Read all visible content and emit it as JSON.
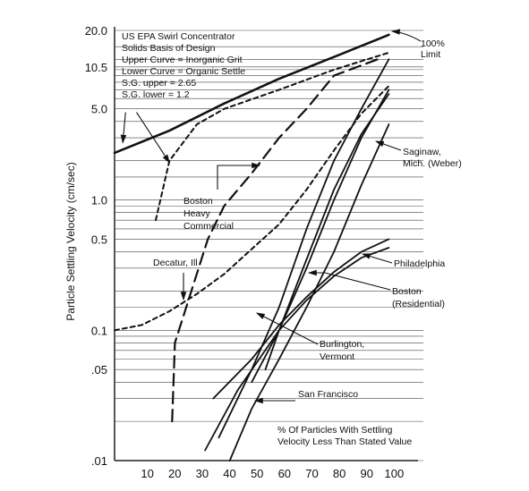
{
  "chart_data": {
    "type": "line",
    "ylabel": "Particle Settling Velocity (cm/sec)",
    "xlabel": "% Of Particles With Settling Velocity Less Than Stated Value",
    "y_scale": "log",
    "xlim": [
      0,
      110
    ],
    "ylim": [
      0.01,
      20
    ],
    "grid": "horizontal lines at major log positions",
    "x_ticks": [
      "10",
      "20",
      "30",
      "40",
      "50",
      "60",
      "70",
      "80",
      "90",
      "100"
    ],
    "y_ticks": [
      {
        "label": "20.0",
        "value": 20
      },
      {
        "label": "10.5",
        "value": 10.5
      },
      {
        "label": "5.0",
        "value": 5
      },
      {
        "label": "1.0",
        "value": 1
      },
      {
        "label": "0.5",
        "value": 0.5
      },
      {
        "label": "0.1",
        "value": 0.1
      },
      {
        "label": ".05",
        "value": 0.05
      },
      {
        "label": ".01",
        "value": 0.01
      }
    ],
    "legend_box": [
      "US EPA Swirl Concentrator",
      "Solids Basis of Design",
      "Upper Curve = Inorganic Grit",
      "Lower Curve = Organic Settle",
      "S.G. upper = 2.65",
      "S.G. lower = 1.2"
    ],
    "series": [
      {
        "key": "epa_upper",
        "style": "solid-thick",
        "points": [
          [
            0,
            2.3
          ],
          [
            20,
            3.4
          ],
          [
            40,
            5.5
          ],
          [
            60,
            8.5
          ],
          [
            80,
            12.5
          ],
          [
            100,
            18.5
          ]
        ]
      },
      {
        "key": "epa_lower",
        "style": "dashed-short",
        "points": [
          [
            15,
            0.7
          ],
          [
            20,
            2.0
          ],
          [
            30,
            3.8
          ],
          [
            40,
            5.0
          ],
          [
            60,
            7.0
          ],
          [
            80,
            10.0
          ],
          [
            100,
            13.5
          ]
        ]
      },
      {
        "key": "boston_heavy",
        "name": "Boston Heavy Commercial",
        "style": "dashed-long",
        "points": [
          [
            21,
            0.02
          ],
          [
            22,
            0.08
          ],
          [
            28,
            0.2
          ],
          [
            34,
            0.5
          ],
          [
            40,
            0.9
          ],
          [
            50,
            1.6
          ],
          [
            60,
            3.0
          ],
          [
            70,
            5.0
          ],
          [
            80,
            9.0
          ],
          [
            96,
            12.0
          ]
        ]
      },
      {
        "key": "decatur",
        "name": "Decatur, Ill",
        "style": "dashed-short",
        "points": [
          [
            0,
            0.1
          ],
          [
            10,
            0.11
          ],
          [
            20,
            0.14
          ],
          [
            30,
            0.19
          ],
          [
            40,
            0.27
          ],
          [
            50,
            0.42
          ],
          [
            60,
            0.65
          ],
          [
            70,
            1.2
          ],
          [
            80,
            2.4
          ],
          [
            90,
            4.6
          ],
          [
            100,
            7.5
          ]
        ]
      },
      {
        "key": "saginaw",
        "name": "Saginaw, Mich. (Weber)",
        "style": "solid",
        "points": [
          [
            50,
            0.04
          ],
          [
            60,
            0.1
          ],
          [
            70,
            0.35
          ],
          [
            80,
            1.2
          ],
          [
            90,
            3.2
          ],
          [
            100,
            6.5
          ]
        ]
      },
      {
        "key": "upper_solid",
        "style": "solid",
        "points": [
          [
            38,
            0.015
          ],
          [
            50,
            0.05
          ],
          [
            60,
            0.15
          ],
          [
            70,
            0.6
          ],
          [
            80,
            2.0
          ],
          [
            90,
            5.0
          ],
          [
            100,
            12.0
          ]
        ]
      },
      {
        "key": "philadelphia",
        "name": "Philadelphia",
        "style": "solid",
        "points": [
          [
            36,
            0.03
          ],
          [
            50,
            0.06
          ],
          [
            60,
            0.11
          ],
          [
            70,
            0.18
          ],
          [
            80,
            0.28
          ],
          [
            90,
            0.4
          ],
          [
            100,
            0.5
          ]
        ]
      },
      {
        "key": "boston_res",
        "name": "Boston (Residential)",
        "style": "solid",
        "points": [
          [
            33,
            0.012
          ],
          [
            45,
            0.035
          ],
          [
            60,
            0.1
          ],
          [
            70,
            0.17
          ],
          [
            80,
            0.26
          ],
          [
            90,
            0.36
          ],
          [
            100,
            0.43
          ]
        ]
      },
      {
        "key": "burlington",
        "name": "Burlington, Vermont",
        "style": "solid",
        "points": [
          [
            42,
            0.01
          ],
          [
            50,
            0.025
          ],
          [
            60,
            0.06
          ],
          [
            70,
            0.15
          ],
          [
            80,
            0.4
          ],
          [
            90,
            1.3
          ],
          [
            100,
            3.8
          ]
        ]
      },
      {
        "key": "san_francisco",
        "style": "solid",
        "points": [
          [
            100,
            7.0
          ],
          [
            90,
            3.0
          ],
          [
            80,
            1.0
          ],
          [
            70,
            0.3
          ],
          [
            60,
            0.1
          ],
          [
            55,
            0.05
          ]
        ]
      }
    ],
    "annotations": {
      "limit": "100%\nLimit",
      "saginaw": "Saginaw,\nMich. (Weber)",
      "boston_heavy": "Boston\nHeavy\nCommercial",
      "philadelphia": "Philadelphia",
      "decatur": "Decatur, Ill",
      "boston_res": "Boston\n(Residential)",
      "burlington": "Burlington,\nVermont",
      "san_francisco": "San Francisco",
      "percent_note": "% Of Particles With Settling\nVelocity Less Than Stated Value"
    }
  }
}
